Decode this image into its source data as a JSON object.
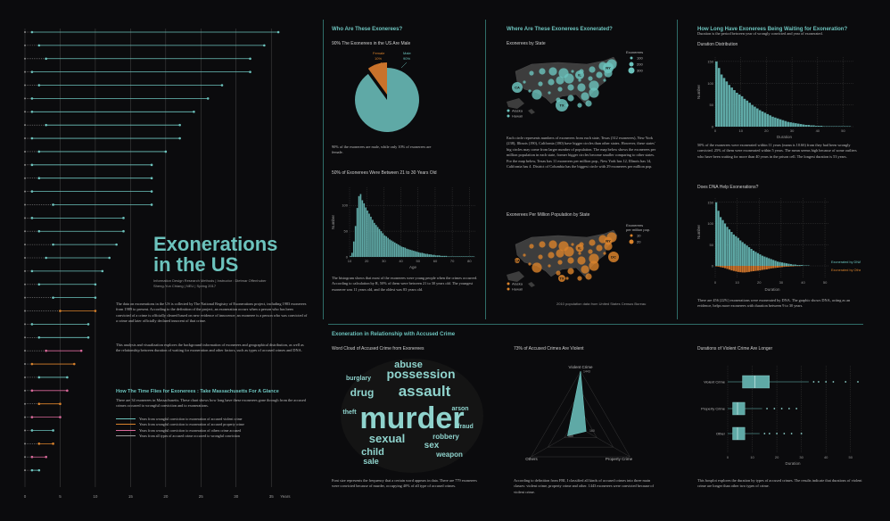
{
  "main": {
    "title_line1": "Exonerations",
    "title_line2": "in the US",
    "credit_line1": "Information Design Research Methods | Instructor : Dietmar Offenhuber",
    "credit_line2": "Sheng-Yun Chiang | NEU | Spring 2017",
    "intro_p1": "The data on exonerations in the US is collected by The National Registry of Exonerations project, including 1983 exonerees from 1989 to present. According to the definition of the project, an exoneration occurs when a person who has been convicted of a crime is officially cleared based on new evidence of innocence; an exoneree is a person who was convicted of a crime and later officially declared innocent of that crime.",
    "intro_p2": "This analysis and visualization explores the background information of exonerees and geographical distribution, as well as the relationship between duration of waiting for exoneration and other factors, such as types of accused crimes and DNA."
  },
  "mass": {
    "title": "How The Time Flies for Exonerees : Take Massachusetts For A Glance",
    "desc": "There are 34 exonerees in Massachusetts. These chart shows how long have these exonerees gone through from the accused crimes occurred to wrongful conviction and to exonerations.",
    "legend": [
      {
        "label": "Years from wrongful conviction to exoneration of accused violent crime",
        "color": "#6cc3bd"
      },
      {
        "label": "Years from wrongful conviction to exoneration of accused property crime",
        "color": "#d9822b"
      },
      {
        "label": "Years from wrongful conviction to exoneration of others crime accused",
        "color": "#d9689a"
      },
      {
        "label": "Years from all types of accused crime occurred to wrongful conviction",
        "color": "#9a9a9a"
      }
    ]
  },
  "who": {
    "title": "Who Are These Exonerees?",
    "pie_title": "90% The Exonerees in the US Are Male",
    "pie_female_label": "Female",
    "pie_female_pct": "10%",
    "pie_male_label": "Male",
    "pie_male_pct": "90%",
    "pie_text": "90% of the exonerees are male, while only 10% of exonerees are female.",
    "age_title": "50% of Exonerees Were Between 21 to 30 Years Old",
    "age_text": "The histogram shows that most of the exonerees were young people when the crimes occurred. According to calculation by R, 50% of them were between 21 to 30 years old. The youngest exoneree was 11 years old, and the oldest was 83 years old."
  },
  "where": {
    "title": "Where Are These Exonerees Exonerated?",
    "map1_title": "Exonerees by State",
    "map1_legend_title": "Exonerees",
    "map1_legend": [
      "100",
      "200",
      "300"
    ],
    "map_labels": {
      "ca": "CA",
      "tx": "TX",
      "il": "IL",
      "ny": "NY",
      "alaska": "Alaska",
      "hawaii": "Hawaii",
      "dc": "DC"
    },
    "map1_text": "Each circle represents numbers of exonerees from each state, Texas (312 exonerees), New York (238), Illinois (190), California (180) have bigger circles than other states. However, these states' big circles may come from larger number of population. The map below shows the exonerees per million population in each state, former bigger circles become smaller comparing to other states. For the map below, Texas has 11 exonerees per million pop., New York has 12, Illinois has 14, California has 4. District of Columbia has the biggest circle with 29 exonerees per million pop.",
    "map2_title": "Exonerees Per Million Population by State",
    "map2_legend_title1": "Exonerees",
    "map2_legend_title2": "per million pop.",
    "map2_legend": [
      "10",
      "20"
    ],
    "source": "2010 population data from United States Census Bureau"
  },
  "wait": {
    "title": "How Long Have Exonerees Being Waiting for Exoneration?",
    "subtitle": "Duration is the period between year of wrongly convicted and year of exonerated.",
    "dist_title": "Duration Distribution",
    "dist_text": "50% of the exonerees were exonerated within 11 years (mean is 10.66) from they had been wrongly convicted. 25% of them were exonerated within 5 years. The mean seems high because of some outliers who have been waiting for more than 40 years in the prison cell. The longest duration is 53 years.",
    "dna_title": "Does DNA Help Exonerations?",
    "dna_label1": "Exonerated by DNA",
    "dna_label2": "Exonerated by Others",
    "dna_text": "There are 456 (22%) exonerations were exonerated by DNA. The graphic shows DNA, acting as an evidence, helps more exonerees with duration between 9 to 30 years."
  },
  "crime": {
    "title": "Exoneration in Relationship with Accused Crime",
    "cloud_title": "Word Cloud of Accused Crime from Exonerees",
    "cloud_words": [
      "murder",
      "assault",
      "possession",
      "abuse",
      "drug",
      "sexual",
      "child",
      "sale",
      "sex",
      "robbery",
      "weapon",
      "burglary",
      "arson",
      "theft",
      "fraud"
    ],
    "cloud_text": "Font size represents the frequency that a certain word appears in data. There are 779 exonerees were convicted because of murder, occupying 40% of all type of accused crimes.",
    "radar_title": "73% of Accused Crimes Are Violent",
    "radar_labels": [
      "Violent Crime",
      "Others",
      "Property Crime"
    ],
    "radar_text": "According to definition from FBI, I classified all kinds of accused crimes into three main classes: violent crime, property crime and other. 1443 exonerees were convicted because of violent crime.",
    "box_title": "Durations of Violent Crime Are Longer",
    "box_text": "This boxplot explores the duration by types of accused crimes. The results indicate that durations of violent crime are longer than other two types of crime."
  },
  "chart_data": [
    {
      "id": "massachusetts-timeline",
      "type": "bar",
      "xlabel": "Years",
      "xticks": [
        0,
        5,
        10,
        15,
        20,
        25,
        30,
        35
      ],
      "xlim": [
        0,
        37
      ],
      "note": "34 Massachusetts exonerees; gray dotted = occurrence to conviction, colored line = conviction to exoneration",
      "rows": [
        {
          "pre": 1,
          "post": 35,
          "c": "v"
        },
        {
          "pre": 2,
          "post": 32,
          "c": "v"
        },
        {
          "pre": 3,
          "post": 29,
          "c": "v"
        },
        {
          "pre": 1,
          "post": 31,
          "c": "v"
        },
        {
          "pre": 2,
          "post": 26,
          "c": "v"
        },
        {
          "pre": 1,
          "post": 25,
          "c": "v"
        },
        {
          "pre": 1,
          "post": 23,
          "c": "v"
        },
        {
          "pre": 3,
          "post": 19,
          "c": "v"
        },
        {
          "pre": 1,
          "post": 21,
          "c": "v"
        },
        {
          "pre": 2,
          "post": 18,
          "c": "v"
        },
        {
          "pre": 1,
          "post": 17,
          "c": "v"
        },
        {
          "pre": 2,
          "post": 16,
          "c": "v"
        },
        {
          "pre": 1,
          "post": 17,
          "c": "v"
        },
        {
          "pre": 4,
          "post": 14,
          "c": "v"
        },
        {
          "pre": 1,
          "post": 13,
          "c": "v"
        },
        {
          "pre": 2,
          "post": 12,
          "c": "v"
        },
        {
          "pre": 4,
          "post": 9,
          "c": "v"
        },
        {
          "pre": 3,
          "post": 9,
          "c": "v"
        },
        {
          "pre": 1,
          "post": 10,
          "c": "v"
        },
        {
          "pre": 2,
          "post": 8,
          "c": "v"
        },
        {
          "pre": 4,
          "post": 6,
          "c": "v"
        },
        {
          "pre": 5,
          "post": 5,
          "c": "p"
        },
        {
          "pre": 1,
          "post": 8,
          "c": "v"
        },
        {
          "pre": 2,
          "post": 7,
          "c": "v"
        },
        {
          "pre": 3,
          "post": 5,
          "c": "o"
        },
        {
          "pre": 1,
          "post": 6,
          "c": "p"
        },
        {
          "pre": 2,
          "post": 4,
          "c": "v"
        },
        {
          "pre": 1,
          "post": 5,
          "c": "o"
        },
        {
          "pre": 2,
          "post": 3,
          "c": "p"
        },
        {
          "pre": 1,
          "post": 4,
          "c": "o"
        },
        {
          "pre": 1,
          "post": 3,
          "c": "v"
        },
        {
          "pre": 2,
          "post": 2,
          "c": "p"
        },
        {
          "pre": 1,
          "post": 2,
          "c": "o"
        },
        {
          "pre": 1,
          "post": 1,
          "c": "v"
        }
      ]
    },
    {
      "id": "gender-pie",
      "type": "pie",
      "title": "90% The Exonerees in the US Are Male",
      "categories": [
        "Male",
        "Female"
      ],
      "values": [
        90,
        10
      ]
    },
    {
      "id": "age-histogram",
      "type": "bar",
      "title": "50% of Exonerees Were Between 21 to 30 Years Old",
      "xlabel": "Age",
      "ylabel": "Number",
      "xticks": [
        10,
        20,
        30,
        40,
        50,
        60,
        70,
        80
      ],
      "yticks": [
        0,
        50,
        100
      ],
      "xlim": [
        10,
        84
      ],
      "ylim": [
        0,
        135
      ],
      "values": [
        2,
        8,
        30,
        60,
        95,
        118,
        122,
        110,
        104,
        96,
        90,
        84,
        78,
        72,
        66,
        62,
        58,
        54,
        50,
        46,
        42,
        40,
        37,
        34,
        32,
        30,
        28,
        26,
        24,
        22,
        20,
        19,
        18,
        16,
        15,
        14,
        13,
        12,
        11,
        10,
        9,
        8,
        8,
        7,
        6,
        6,
        5,
        5,
        4,
        4,
        3,
        3,
        3,
        2,
        2,
        2,
        2,
        1,
        1,
        1,
        1,
        1,
        1,
        1,
        1,
        1,
        1,
        1,
        1,
        1,
        1,
        1,
        1
      ]
    },
    {
      "id": "duration-histogram",
      "type": "bar",
      "title": "Duration Distribution",
      "xlabel": "Duration",
      "ylabel": "Number",
      "xticks": [
        0,
        10,
        20,
        30,
        40,
        50
      ],
      "yticks": [
        0,
        50,
        100,
        150
      ],
      "xlim": [
        0,
        54
      ],
      "ylim": [
        0,
        160
      ],
      "values": [
        150,
        135,
        120,
        112,
        104,
        96,
        90,
        84,
        78,
        74,
        70,
        64,
        60,
        55,
        50,
        46,
        42,
        38,
        35,
        32,
        29,
        26,
        23,
        21,
        19,
        17,
        15,
        13,
        11,
        10,
        9,
        8,
        7,
        6,
        5,
        4,
        4,
        3,
        3,
        2,
        2,
        2,
        1,
        1,
        1,
        1,
        1,
        1,
        1,
        1,
        1,
        1,
        1
      ]
    },
    {
      "id": "dna-histogram",
      "type": "bar",
      "title": "Does DNA Help Exonerations?",
      "xlabel": "Duration",
      "ylabel": "Number",
      "xticks": [
        0,
        10,
        20,
        30,
        40,
        50
      ],
      "yticks": [
        0,
        50,
        100,
        150
      ],
      "series": [
        {
          "name": "Exonerated by DNA",
          "values": [
            150,
            130,
            115,
            108,
            100,
            92,
            86,
            80,
            74,
            70,
            66,
            60,
            56,
            52,
            48,
            44,
            40,
            36,
            33,
            30,
            27,
            24,
            22,
            20,
            18,
            16,
            14,
            12,
            10,
            9,
            8,
            7,
            6,
            5,
            4,
            3,
            3,
            2,
            2,
            2,
            1,
            1,
            1
          ]
        },
        {
          "name": "Exonerated by Others",
          "values": [
            2,
            3,
            5,
            7,
            9,
            12,
            15,
            18,
            20,
            22,
            24,
            25,
            26,
            26,
            25,
            24,
            22,
            21,
            20,
            19,
            18,
            16,
            15,
            14,
            12,
            10,
            9,
            8,
            7,
            6,
            5,
            4,
            3,
            3,
            2,
            2,
            1,
            1,
            1
          ]
        }
      ]
    },
    {
      "id": "crime-radar",
      "type": "area",
      "title": "73% of Accused Crimes Are Violent",
      "categories": [
        "Violent Crime",
        "Property Crime",
        "Others"
      ],
      "values": [
        1443,
        160,
        380
      ],
      "rlim": [
        0,
        1443
      ]
    },
    {
      "id": "duration-boxplot",
      "type": "scatter",
      "title": "Durations of Violent Crime Are Longer",
      "xlabel": "Duration",
      "xticks": [
        0,
        10,
        20,
        30,
        40,
        50
      ],
      "xlim": [
        0,
        53
      ],
      "categories": [
        "Violent Crime",
        "Property Crime",
        "Other"
      ],
      "boxes": [
        {
          "min": 0,
          "q1": 6,
          "median": 11,
          "q3": 17,
          "max": 33,
          "outliers": [
            35,
            37,
            40,
            43,
            48,
            53
          ]
        },
        {
          "min": 0,
          "q1": 2,
          "median": 4,
          "q3": 7,
          "max": 14,
          "outliers": [
            16,
            19,
            22,
            25,
            28
          ]
        },
        {
          "min": 0,
          "q1": 2,
          "median": 4,
          "q3": 7,
          "max": 13,
          "outliers": [
            15,
            17,
            20,
            23,
            26,
            30
          ]
        }
      ]
    }
  ]
}
